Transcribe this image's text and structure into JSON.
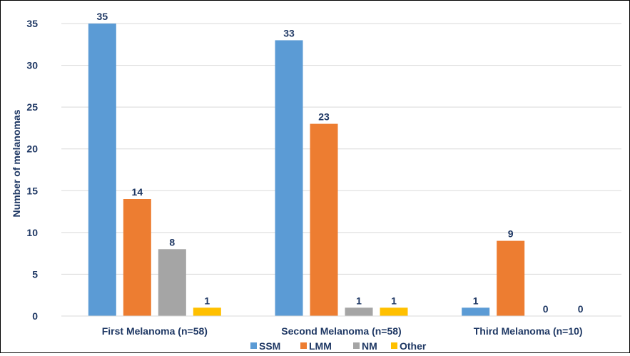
{
  "chart_data": {
    "type": "bar",
    "title": "",
    "xlabel": "",
    "ylabel": "Number of melanomas",
    "ylim": [
      0,
      35
    ],
    "yticks": [
      0,
      5,
      10,
      15,
      20,
      25,
      30,
      35
    ],
    "grid": true,
    "legend_position": "bottom",
    "categories": [
      "First Melanoma (n=58)",
      "Second Melanoma (n=58)",
      "Third Melanoma (n=10)"
    ],
    "series": [
      {
        "name": "SSM",
        "color": "#5b9bd5",
        "values": [
          35,
          33,
          1
        ]
      },
      {
        "name": "LMM",
        "color": "#ed7d31",
        "values": [
          14,
          23,
          9
        ]
      },
      {
        "name": "NM",
        "color": "#a5a5a5",
        "values": [
          8,
          1,
          0
        ]
      },
      {
        "name": "Other",
        "color": "#ffc000",
        "values": [
          1,
          1,
          0
        ]
      }
    ],
    "text_color": "#1f3864",
    "gridline_color": "#d9d9d9"
  }
}
